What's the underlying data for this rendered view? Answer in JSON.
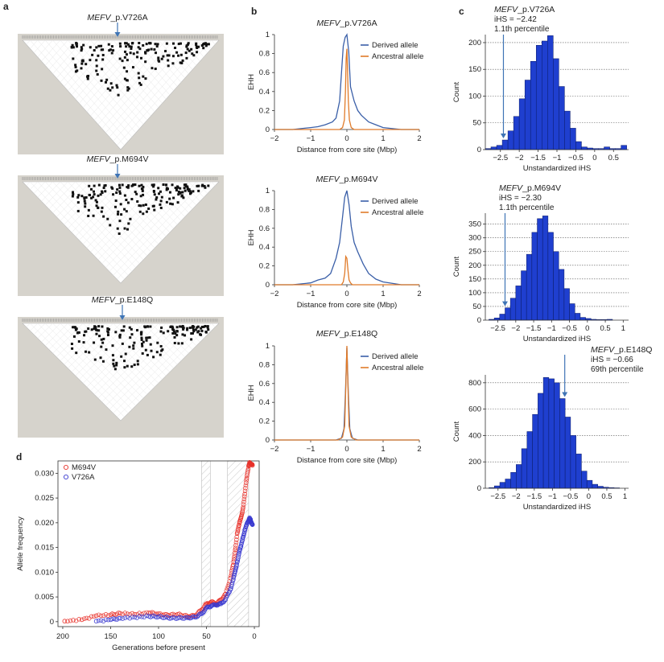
{
  "panels": {
    "a": "a",
    "b": "b",
    "c": "c",
    "d": "d"
  },
  "variants": [
    {
      "gene": "MEFV",
      "suffix": "_p.V726A"
    },
    {
      "gene": "MEFV",
      "suffix": "_p.M694V"
    },
    {
      "gene": "MEFV",
      "suffix": "_p.E148Q"
    }
  ],
  "colors": {
    "derived": "#3a5fa8",
    "ancestral": "#e07b2a",
    "hist_fill": "#1f3fcf",
    "hist_stroke": "#0a1a66",
    "arrow": "#3f74b5",
    "ld_bg": "#d6d3cc",
    "m694v": "#e8322b",
    "v726a": "#3a3ad0"
  },
  "chart_data": [
    {
      "type": "line",
      "panel": "b",
      "title": "MEFV_p.V726A",
      "xlabel": "Distance from core site (Mbp)",
      "ylabel": "EHH",
      "xlim": [
        -2,
        2
      ],
      "ylim": [
        0,
        1
      ],
      "xticks": [
        "-2",
        "-1",
        "0",
        "1",
        "2"
      ],
      "yticks": [
        "0",
        "0.2",
        "0.4",
        "0.6",
        "0.8",
        "1"
      ],
      "legend": [
        "Derived allele",
        "Ancestral allele"
      ],
      "series": [
        {
          "name": "Derived allele",
          "x": [
            -2,
            -1.5,
            -1.0,
            -0.8,
            -0.6,
            -0.4,
            -0.3,
            -0.2,
            -0.15,
            -0.1,
            -0.05,
            0,
            0.05,
            0.1,
            0.2,
            0.3,
            0.4,
            0.6,
            0.8,
            1.0,
            1.5,
            2
          ],
          "y": [
            0,
            0,
            0.02,
            0.03,
            0.05,
            0.08,
            0.12,
            0.3,
            0.6,
            0.88,
            0.97,
            1.0,
            0.82,
            0.45,
            0.3,
            0.2,
            0.15,
            0.08,
            0.05,
            0.02,
            0,
            0
          ]
        },
        {
          "name": "Ancestral allele",
          "x": [
            -2,
            -0.2,
            -0.12,
            -0.07,
            -0.04,
            -0.02,
            0,
            0.02,
            0.04,
            0.07,
            0.12,
            0.2,
            2
          ],
          "y": [
            0,
            0,
            0.02,
            0.1,
            0.4,
            0.75,
            0.85,
            0.6,
            0.3,
            0.1,
            0.02,
            0,
            0
          ]
        }
      ]
    },
    {
      "type": "line",
      "panel": "b",
      "title": "MEFV_p.M694V",
      "xlabel": "Distance from core site (Mbp)",
      "ylabel": "EHH",
      "xlim": [
        -2,
        2
      ],
      "ylim": [
        0,
        1
      ],
      "xticks": [
        "-2",
        "-1",
        "0",
        "1",
        "2"
      ],
      "yticks": [
        "0",
        "0.2",
        "0.4",
        "0.6",
        "0.8",
        "1"
      ],
      "legend": [
        "Derived allele",
        "Ancestral allele"
      ],
      "series": [
        {
          "name": "Derived allele",
          "x": [
            -2,
            -1.5,
            -1.0,
            -0.8,
            -0.6,
            -0.45,
            -0.3,
            -0.2,
            -0.12,
            -0.06,
            0,
            0.06,
            0.12,
            0.2,
            0.3,
            0.45,
            0.6,
            0.8,
            1.0,
            1.5,
            2
          ],
          "y": [
            0,
            0,
            0.02,
            0.05,
            0.07,
            0.12,
            0.28,
            0.45,
            0.72,
            0.93,
            1.0,
            0.85,
            0.62,
            0.45,
            0.35,
            0.22,
            0.12,
            0.06,
            0.03,
            0,
            0
          ]
        },
        {
          "name": "Ancestral allele",
          "x": [
            -2,
            -0.15,
            -0.1,
            -0.06,
            -0.03,
            0,
            0.03,
            0.06,
            0.1,
            0.15,
            2
          ],
          "y": [
            0,
            0,
            0.03,
            0.12,
            0.3,
            0.28,
            0.15,
            0.05,
            0.02,
            0,
            0
          ]
        }
      ]
    },
    {
      "type": "line",
      "panel": "b",
      "title": "MEFV_p.E148Q",
      "xlabel": "Distance from core site (Mbp)",
      "ylabel": "EHH",
      "xlim": [
        -2,
        2
      ],
      "ylim": [
        0,
        1
      ],
      "xticks": [
        "-2",
        "-1",
        "0",
        "1",
        "2"
      ],
      "yticks": [
        "0",
        "0.2",
        "0.4",
        "0.6",
        "0.8",
        "1"
      ],
      "legend": [
        "Derived allele",
        "Ancestral allele"
      ],
      "series": [
        {
          "name": "Derived allele",
          "x": [
            -2,
            -0.3,
            -0.15,
            -0.08,
            -0.04,
            0,
            0.04,
            0.08,
            0.15,
            0.3,
            2
          ],
          "y": [
            0,
            0,
            0.02,
            0.12,
            0.5,
            0.98,
            0.5,
            0.12,
            0.02,
            0,
            0
          ]
        },
        {
          "name": "Ancestral allele",
          "x": [
            -2,
            -0.25,
            -0.12,
            -0.06,
            -0.03,
            0,
            0.03,
            0.06,
            0.12,
            0.25,
            2
          ],
          "y": [
            0,
            0,
            0.03,
            0.15,
            0.55,
            1.0,
            0.55,
            0.15,
            0.03,
            0,
            0
          ]
        }
      ]
    },
    {
      "type": "bar",
      "panel": "c",
      "subtype": "histogram",
      "xlabel": "Unstandardized iHS",
      "ylabel": "Count",
      "xlim": [
        -2.9,
        0.9
      ],
      "ylim": [
        0,
        215
      ],
      "xticks": [
        -2.5,
        -2,
        -1.5,
        -1,
        -0.5,
        0,
        0.5
      ],
      "xtick_labels": [
        "−2.5",
        "−2",
        "−1.5",
        "−1",
        "−0.5",
        "0",
        "0.5"
      ],
      "yticks": [
        0,
        50,
        100,
        150,
        200
      ],
      "ytick_labels": [
        "0",
        "50",
        "100",
        "150",
        "200"
      ],
      "bin_start": -2.9,
      "bin_width": 0.15,
      "values": [
        2,
        5,
        8,
        18,
        35,
        62,
        95,
        130,
        165,
        195,
        203,
        213,
        170,
        118,
        72,
        40,
        15,
        5,
        3,
        2,
        2,
        5,
        2,
        2,
        8
      ],
      "annotation": {
        "x": -2.42,
        "lines": [
          "MEFV_p.V726A",
          "iHS = −2.42",
          "1.1th percentile"
        ]
      }
    },
    {
      "type": "bar",
      "panel": "c",
      "subtype": "histogram",
      "xlabel": "Unstandardized iHS",
      "ylabel": "Count",
      "xlim": [
        -2.85,
        1.15
      ],
      "ylim": [
        0,
        390
      ],
      "xticks": [
        -2.5,
        -2,
        -1.5,
        -1,
        -0.5,
        0,
        0.5,
        1
      ],
      "xtick_labels": [
        "−2.5",
        "−2",
        "−1.5",
        "−1",
        "−0.5",
        "0",
        "0.5",
        "1"
      ],
      "yticks": [
        0,
        50,
        100,
        150,
        200,
        250,
        300,
        350
      ],
      "ytick_labels": [
        "0",
        "50",
        "100",
        "150",
        "200",
        "250",
        "300",
        "350"
      ],
      "bin_start": -2.75,
      "bin_width": 0.15,
      "values": [
        3,
        8,
        22,
        45,
        80,
        125,
        180,
        240,
        320,
        370,
        380,
        320,
        250,
        185,
        115,
        60,
        25,
        10,
        6,
        3,
        2,
        2,
        3
      ],
      "annotation": {
        "x": -2.3,
        "lines": [
          "MEFV_p.M694V",
          "iHS = −2.30",
          "1.1th percentile"
        ]
      }
    },
    {
      "type": "bar",
      "panel": "c",
      "subtype": "histogram",
      "xlabel": "Unstandardized iHS",
      "ylabel": "Count",
      "xlim": [
        -2.85,
        1.1
      ],
      "ylim": [
        0,
        860
      ],
      "xticks": [
        -2.5,
        -2,
        -1.5,
        -1,
        -0.5,
        0,
        0.5,
        1
      ],
      "xtick_labels": [
        "−2.5",
        "−2",
        "−1.5",
        "−1",
        "−0.5",
        "0",
        "0.5",
        "1"
      ],
      "yticks": [
        0,
        200,
        400,
        600,
        800
      ],
      "ytick_labels": [
        "0",
        "200",
        "400",
        "600",
        "800"
      ],
      "bin_start": -2.75,
      "bin_width": 0.15,
      "values": [
        5,
        18,
        45,
        70,
        120,
        180,
        300,
        430,
        560,
        720,
        840,
        830,
        800,
        680,
        540,
        400,
        260,
        130,
        60,
        30,
        15,
        8,
        5,
        3
      ],
      "annotation": {
        "x": -0.66,
        "lines": [
          "MEFV_p.E148Q",
          "iHS = −0.66",
          "69th percentile"
        ]
      }
    },
    {
      "type": "scatter",
      "panel": "d",
      "xlabel": "Generations before present",
      "ylabel": "Allele frequency",
      "xlim": [
        205,
        -5
      ],
      "ylim": [
        -0.001,
        0.0325
      ],
      "xticks": [
        200,
        150,
        100,
        50,
        0
      ],
      "xtick_labels": [
        "200",
        "150",
        "100",
        "50",
        "0"
      ],
      "yticks": [
        0,
        0.005,
        0.01,
        0.015,
        0.02,
        0.025,
        0.03
      ],
      "ytick_labels": [
        "0",
        "0.005",
        "0.010",
        "0.015",
        "0.020",
        "0.025",
        "0.030"
      ],
      "legend": [
        "M694V",
        "V726A"
      ],
      "shaded_ranges": [
        [
          55,
          46
        ],
        [
          28,
          6
        ]
      ],
      "series": [
        {
          "name": "M694V",
          "x": [
            198,
            180,
            165,
            150,
            140,
            125,
            110,
            100,
            90,
            80,
            70,
            62,
            55,
            50,
            45,
            40,
            35,
            30,
            25,
            22,
            20,
            18,
            16,
            14,
            12,
            10,
            8,
            6,
            5,
            4,
            3,
            2
          ],
          "y": [
            0.0001,
            0.0004,
            0.0012,
            0.0014,
            0.0017,
            0.0015,
            0.0018,
            0.0016,
            0.0013,
            0.0015,
            0.0011,
            0.0012,
            0.0024,
            0.0036,
            0.004,
            0.0036,
            0.0044,
            0.0056,
            0.0088,
            0.0115,
            0.0145,
            0.0178,
            0.0195,
            0.021,
            0.0228,
            0.0258,
            0.029,
            0.0315,
            0.0322,
            0.032,
            0.0318,
            0.0316
          ]
        },
        {
          "name": "V726A",
          "x": [
            165,
            150,
            140,
            125,
            110,
            100,
            90,
            80,
            70,
            62,
            55,
            50,
            45,
            40,
            35,
            30,
            25,
            22,
            20,
            18,
            16,
            14,
            12,
            10,
            8,
            6,
            5,
            4,
            3,
            2
          ],
          "y": [
            0.0001,
            0.0004,
            0.0007,
            0.0009,
            0.0011,
            0.001,
            0.0008,
            0.0007,
            0.0008,
            0.0009,
            0.0016,
            0.0028,
            0.0032,
            0.0034,
            0.0036,
            0.0045,
            0.0065,
            0.0085,
            0.0102,
            0.012,
            0.0138,
            0.0152,
            0.017,
            0.0185,
            0.0196,
            0.0204,
            0.021,
            0.0207,
            0.02,
            0.0196
          ]
        }
      ]
    }
  ]
}
